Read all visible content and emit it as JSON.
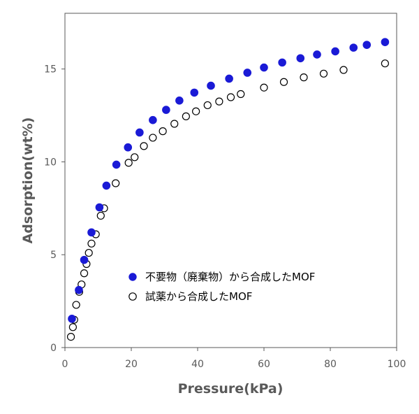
{
  "chart_data": {
    "type": "scatter",
    "title": "",
    "xlabel": "Pressure(kPa)",
    "ylabel": "Adsorption(wt%)",
    "xlim": [
      0,
      100
    ],
    "ylim": [
      0,
      18
    ],
    "x_ticks": [
      0,
      20,
      40,
      60,
      80,
      100
    ],
    "y_ticks": [
      0,
      5,
      10,
      15
    ],
    "grid": false,
    "legend_position": "lower-right",
    "series": [
      {
        "name": "不要物（廃棄物）から合成したMOF",
        "marker": "filled-circle",
        "color": "#1a1ad6",
        "points": [
          [
            2.1,
            1.55
          ],
          [
            4.2,
            3.1
          ],
          [
            5.8,
            4.72
          ],
          [
            8.0,
            6.2
          ],
          [
            10.4,
            7.55
          ],
          [
            12.5,
            8.72
          ],
          [
            15.5,
            9.85
          ],
          [
            19.0,
            10.78
          ],
          [
            22.5,
            11.58
          ],
          [
            26.5,
            12.25
          ],
          [
            30.5,
            12.8
          ],
          [
            34.5,
            13.3
          ],
          [
            39.0,
            13.73
          ],
          [
            44.0,
            14.1
          ],
          [
            49.5,
            14.48
          ],
          [
            55.0,
            14.8
          ],
          [
            60.0,
            15.08
          ],
          [
            65.5,
            15.35
          ],
          [
            71.0,
            15.58
          ],
          [
            76.0,
            15.78
          ],
          [
            81.5,
            15.95
          ],
          [
            87.0,
            16.15
          ],
          [
            91.0,
            16.3
          ],
          [
            96.5,
            16.45
          ]
        ]
      },
      {
        "name": "試薬から合成したMOF",
        "marker": "open-circle",
        "color": "#000000",
        "points": [
          [
            1.8,
            0.58
          ],
          [
            2.4,
            1.1
          ],
          [
            2.8,
            1.5
          ],
          [
            3.4,
            2.3
          ],
          [
            4.3,
            3.0
          ],
          [
            5.0,
            3.4
          ],
          [
            5.8,
            4.0
          ],
          [
            6.5,
            4.5
          ],
          [
            7.2,
            5.1
          ],
          [
            8.0,
            5.6
          ],
          [
            9.3,
            6.1
          ],
          [
            10.8,
            7.1
          ],
          [
            11.8,
            7.5
          ],
          [
            15.3,
            8.85
          ],
          [
            19.2,
            9.95
          ],
          [
            21.0,
            10.25
          ],
          [
            23.8,
            10.85
          ],
          [
            26.5,
            11.3
          ],
          [
            29.5,
            11.65
          ],
          [
            33.0,
            12.05
          ],
          [
            36.5,
            12.45
          ],
          [
            39.5,
            12.72
          ],
          [
            43.0,
            13.05
          ],
          [
            46.5,
            13.25
          ],
          [
            50.0,
            13.48
          ],
          [
            53.0,
            13.65
          ],
          [
            60.0,
            14.0
          ],
          [
            66.0,
            14.3
          ],
          [
            72.0,
            14.55
          ],
          [
            78.0,
            14.75
          ],
          [
            84.0,
            14.95
          ],
          [
            96.5,
            15.3
          ]
        ]
      }
    ]
  }
}
